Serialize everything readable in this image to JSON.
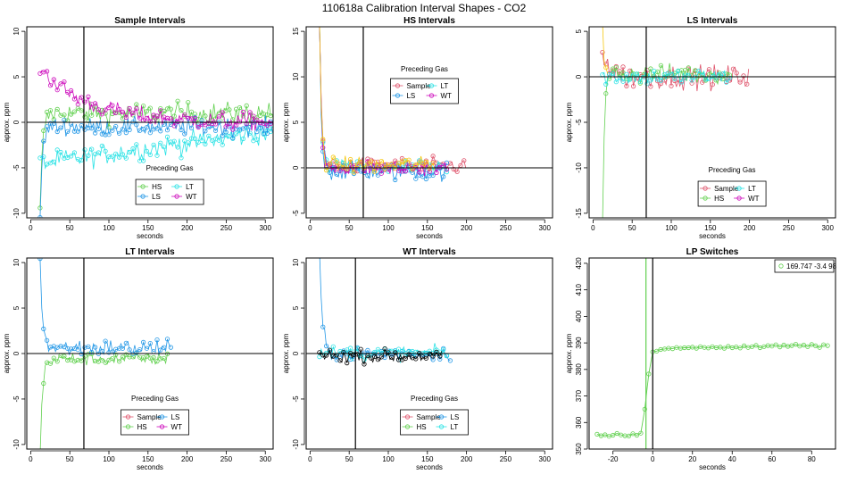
{
  "figure": {
    "title": "110618a   Calibration Interval Shapes - CO2"
  },
  "colors": {
    "Sample": "#df536b",
    "HS": "#61d04f",
    "LS": "#2297e6",
    "LT": "#28e2e5",
    "WT": "#cd0bbc",
    "Black": "#000000",
    "Gold": "#f5c710"
  },
  "chart_data": [
    {
      "id": "sample",
      "type": "scatter",
      "title": "Sample Intervals",
      "xlabel": "seconds",
      "ylabel": "approx. ppm",
      "xlim": [
        -5,
        310
      ],
      "ylim": [
        -10.5,
        10.5
      ],
      "xticks": [
        0,
        50,
        100,
        150,
        200,
        250,
        300
      ],
      "yticks": [
        -10,
        -5,
        0,
        5,
        10
      ],
      "hline": 0,
      "vline": 68,
      "legend": {
        "title": "Preceding Gas",
        "position": "bottom-center",
        "entries": [
          "HS",
          "LT",
          "LS",
          "WT"
        ]
      },
      "series": [
        {
          "name": "HS",
          "xmax": 310,
          "level": 1.0,
          "noise": 1.2,
          "start": -10,
          "decay": 3
        },
        {
          "name": "LT",
          "xmax": 310,
          "level": -4.5,
          "noise": 1.2,
          "start": -4,
          "decay": 150,
          "end": -1
        },
        {
          "name": "LS",
          "xmax": 310,
          "level": -0.5,
          "noise": 1.0,
          "start": -10,
          "decay": 3
        },
        {
          "name": "WT",
          "xmax": 310,
          "level": 0,
          "noise": 1.0,
          "start": 6,
          "decay": 60
        }
      ]
    },
    {
      "id": "hs",
      "type": "scatter",
      "title": "HS Intervals",
      "xlabel": "seconds",
      "ylabel": "approx. ppm",
      "xlim": [
        -5,
        310
      ],
      "ylim": [
        -5.5,
        15.5
      ],
      "xticks": [
        0,
        50,
        100,
        150,
        200,
        250,
        300
      ],
      "yticks": [
        -5,
        0,
        5,
        10,
        15
      ],
      "hline": 0,
      "vline": 68,
      "legend": {
        "title": "Preceding Gas",
        "position": "top-center",
        "entries": [
          "Sample",
          "LT",
          "LS",
          "WT"
        ]
      },
      "series": [
        {
          "name": "Sample",
          "xmax": 200,
          "level": 0.2,
          "noise": 0.9,
          "start": 16,
          "decay": 2.5
        },
        {
          "name": "LT",
          "xmax": 175,
          "level": 0,
          "noise": 0.9,
          "start": 16,
          "decay": 2.5
        },
        {
          "name": "LS",
          "xmax": 175,
          "level": -0.4,
          "noise": 1.0,
          "start": 16,
          "decay": 2.5
        },
        {
          "name": "WT",
          "xmax": 175,
          "level": 0,
          "noise": 0.9,
          "start": 16,
          "decay": 2.5
        },
        {
          "name": "Gold",
          "xmax": 160,
          "level": 0.3,
          "noise": 0.9,
          "start": 16,
          "decay": 2.5
        }
      ]
    },
    {
      "id": "ls",
      "type": "scatter",
      "title": "LS Intervals",
      "xlabel": "seconds",
      "ylabel": "approx. ppm",
      "xlim": [
        -5,
        310
      ],
      "ylim": [
        -15.5,
        5.5
      ],
      "xticks": [
        0,
        50,
        100,
        150,
        200,
        250,
        300
      ],
      "yticks": [
        -15,
        -10,
        -5,
        0,
        5
      ],
      "hline": 0,
      "vline": 68,
      "legend": {
        "title": "Preceding Gas",
        "position": "bottom-center",
        "entries": [
          "Sample",
          "LT",
          "HS",
          "WT"
        ]
      },
      "series": [
        {
          "name": "Sample",
          "xmax": 200,
          "level": 0,
          "noise": 1.3,
          "start": 3,
          "decay": 8
        },
        {
          "name": "HS",
          "xmax": 175,
          "level": 0.3,
          "noise": 1.1,
          "start": -16,
          "decay": 2.5
        },
        {
          "name": "LT",
          "xmax": 175,
          "level": 0,
          "noise": 0.9,
          "start": 0,
          "decay": 5
        },
        {
          "name": "Gold",
          "xmax": 20,
          "level": 0,
          "noise": 0.5,
          "start": 6,
          "decay": 2
        }
      ]
    },
    {
      "id": "lt",
      "type": "scatter",
      "title": "LT Intervals",
      "xlabel": "seconds",
      "ylabel": "approx. ppm",
      "xlim": [
        -5,
        310
      ],
      "ylim": [
        -10.5,
        10.5
      ],
      "xticks": [
        0,
        50,
        100,
        150,
        200,
        250,
        300
      ],
      "yticks": [
        -10,
        -5,
        0,
        5,
        10
      ],
      "hline": 0,
      "vline": 68,
      "legend": {
        "title": "Preceding Gas",
        "position": "bottom-center",
        "entries": [
          "Sample",
          "LS",
          "HS",
          "WT"
        ]
      },
      "series": [
        {
          "name": "HS",
          "xmax": 175,
          "level": -0.6,
          "noise": 0.7,
          "start": -11,
          "decay": 3
        },
        {
          "name": "LS",
          "xmax": 180,
          "level": 0.6,
          "noise": 1.0,
          "start": 11,
          "decay": 3
        }
      ]
    },
    {
      "id": "wt",
      "type": "scatter",
      "title": "WT Intervals",
      "xlabel": "seconds",
      "ylabel": "approx. ppm",
      "xlim": [
        -5,
        310
      ],
      "ylim": [
        -10.5,
        10.5
      ],
      "xticks": [
        0,
        50,
        100,
        150,
        200,
        250,
        300
      ],
      "yticks": [
        -10,
        -5,
        0,
        5,
        10
      ],
      "hline": 0,
      "vline": 58,
      "legend": {
        "title": "Preceding Gas",
        "position": "bottom-center",
        "entries": [
          "Sample",
          "LS",
          "HS",
          "LT"
        ]
      },
      "series": [
        {
          "name": "LS",
          "xmax": 180,
          "level": 0,
          "noise": 0.8,
          "start": 11,
          "decay": 3.5
        },
        {
          "name": "LT",
          "xmax": 175,
          "level": 0,
          "noise": 0.8,
          "start": 0,
          "decay": 5
        },
        {
          "name": "Black",
          "xmax": 170,
          "level": -0.3,
          "noise": 0.7,
          "start": 0,
          "decay": 5
        }
      ]
    },
    {
      "id": "lp",
      "type": "line",
      "title": "LP Switches",
      "xlabel": "seconds",
      "ylabel": "approx. ppm",
      "xlim": [
        -32,
        92
      ],
      "ylim": [
        350,
        422
      ],
      "xticks": [
        -20,
        0,
        20,
        40,
        60,
        80
      ],
      "yticks": [
        350,
        360,
        370,
        380,
        390,
        400,
        410,
        420
      ],
      "vline": 0,
      "legend": {
        "position": "top-right",
        "entries": [
          "169.747 -3.4 98"
        ]
      },
      "series": [
        {
          "name": "HS",
          "x": [
            -28,
            -26,
            -24,
            -22,
            -20,
            -18,
            -16,
            -14,
            -12,
            -10,
            -8,
            -6,
            -4,
            -2,
            0,
            2,
            4,
            6,
            8,
            10,
            12,
            14,
            16,
            18,
            20,
            22,
            24,
            26,
            28,
            30,
            32,
            34,
            36,
            38,
            40,
            42,
            44,
            46,
            48,
            50,
            52,
            54,
            56,
            58,
            60,
            62,
            64,
            66,
            68,
            70,
            72,
            74,
            76,
            78,
            80,
            82,
            84,
            86,
            88
          ],
          "y": [
            355.6,
            355.0,
            355.4,
            354.8,
            355.2,
            355.9,
            355.3,
            355.0,
            354.9,
            355.8,
            355.2,
            356.0,
            365,
            378.3,
            386.6,
            386.9,
            387.5,
            387.7,
            388.0,
            387.8,
            388.3,
            388.0,
            388.2,
            388.2,
            388.4,
            388.0,
            388.6,
            388.3,
            388.1,
            388.6,
            388.2,
            388.4,
            388.0,
            388.7,
            388.2,
            388.5,
            388.1,
            388.9,
            388.3,
            388.6,
            389.1,
            388.2,
            388.6,
            389.0,
            388.8,
            389.3,
            388.5,
            389.2,
            388.7,
            389.0,
            389.5,
            388.8,
            389.2,
            388.6,
            389.4,
            388.9,
            388.3,
            389.3,
            389.0
          ],
          "spike_x": -3.4
        }
      ]
    }
  ]
}
